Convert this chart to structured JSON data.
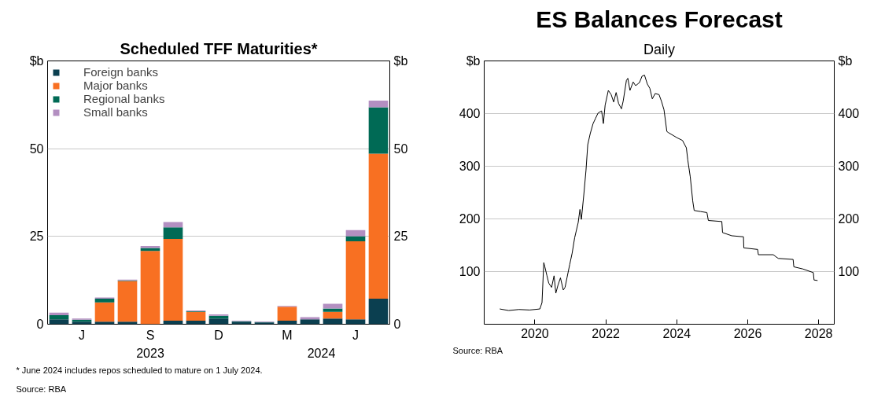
{
  "chart_data": [
    {
      "type": "bar",
      "title": "Scheduled TFF Maturities*",
      "ylabel": "$b",
      "y2label": "$b",
      "stacked": true,
      "categories": [
        null,
        "J",
        null,
        null,
        "S",
        null,
        null,
        "D",
        null,
        null,
        "M",
        null,
        null,
        "J",
        null
      ],
      "series": [
        {
          "name": "Foreign banks",
          "color": "#0b3f50",
          "values": [
            1.4,
            0.7,
            0.7,
            0.7,
            0,
            1.0,
            1.0,
            1.6,
            0.6,
            0.5,
            1.0,
            1.4,
            1.6,
            1.4,
            7.3
          ]
        },
        {
          "name": "Major banks",
          "color": "#f87022",
          "values": [
            0,
            0,
            5.5,
            11.6,
            20.9,
            23.3,
            2.5,
            0,
            0,
            0,
            4.0,
            0,
            1.9,
            22.2,
            41.3
          ]
        },
        {
          "name": "Regional banks",
          "color": "#006a55",
          "values": [
            1.2,
            0.6,
            1.1,
            0.2,
            0.8,
            3.3,
            0.2,
            0.8,
            0.2,
            0.1,
            0,
            0,
            1.0,
            1.5,
            13.2
          ]
        },
        {
          "name": "Small banks",
          "color": "#b38fc1",
          "values": [
            0.7,
            0.3,
            0.3,
            0.2,
            0.6,
            1.5,
            0.2,
            0.4,
            0.2,
            0.2,
            0.2,
            0.6,
            1.3,
            1.7,
            1.9
          ]
        }
      ],
      "ylim": [
        0,
        75
      ],
      "yticks": [
        0,
        25,
        50
      ],
      "y2lim": [
        0,
        75
      ],
      "y2ticks": [
        0,
        25,
        50
      ],
      "grid": "y",
      "legend": "top left",
      "annotations": [
        "2023",
        "2024",
        "*     June 2024 includes repos scheduled to mature on 1 July 2024.",
        "Source:     RBA"
      ]
    },
    {
      "type": "line",
      "title": "ES Balances Forecast",
      "subtitle": "Daily",
      "ylabel": "$b",
      "y2label": "$b",
      "series": [
        {
          "color": "#000000",
          "x": [
            2019.01,
            2019.26,
            2019.55,
            2019.85,
            2020.14,
            2020.2,
            2020.25,
            2020.28,
            2020.34,
            2020.39,
            2020.47,
            2020.54,
            2020.59,
            2020.65,
            2020.72,
            2020.8,
            2020.85,
            2020.91,
            2020.98,
            2021.05,
            2021.12,
            2021.22,
            2021.27,
            2021.31,
            2021.38,
            2021.44,
            2021.49,
            2021.56,
            2021.64,
            2021.71,
            2021.78,
            2021.88,
            2021.93,
            2021.98,
            2022.07,
            2022.15,
            2022.22,
            2022.29,
            2022.36,
            2022.44,
            2022.49,
            2022.58,
            2022.62,
            2022.68,
            2022.77,
            2022.84,
            2022.95,
            2023.02,
            2023.09,
            2023.17,
            2023.24,
            2023.31,
            2023.39,
            2023.5,
            2023.57,
            2023.64,
            2023.72,
            2023.76,
            2024.01,
            2024.16,
            2024.27,
            2024.31,
            2024.38,
            2024.45,
            2024.49,
            2024.67,
            2024.85,
            2024.89,
            2025.27,
            2025.29,
            2025.55,
            2025.88,
            2025.89,
            2026.28,
            2026.3,
            2026.72,
            2026.86,
            2027.28,
            2027.3,
            2027.55,
            2027.85,
            2027.87,
            2027.97
          ],
          "values": [
            29,
            26,
            28,
            27,
            29,
            41,
            117,
            109,
            92,
            78,
            70,
            92,
            59,
            74,
            88,
            65,
            70,
            90,
            113,
            135,
            164,
            193,
            218,
            199,
            247,
            292,
            341,
            362,
            381,
            391,
            401,
            405,
            381,
            416,
            444,
            436,
            422,
            440,
            419,
            409,
            424,
            463,
            467,
            444,
            460,
            453,
            459,
            471,
            473,
            456,
            448,
            428,
            438,
            436,
            423,
            407,
            366,
            364,
            354,
            349,
            335,
            312,
            280,
            234,
            216,
            214,
            212,
            197,
            195,
            174,
            168,
            166,
            145,
            142,
            132,
            132,
            125,
            123,
            109,
            105,
            98,
            84,
            83
          ]
        }
      ],
      "xlim": [
        2018.57,
        2028.44
      ],
      "xticks": [
        2020,
        2022,
        2024,
        2026,
        2028
      ],
      "ylim": [
        0,
        500
      ],
      "yticks": [
        100,
        200,
        300,
        400
      ],
      "y2lim": [
        0,
        500
      ],
      "y2ticks": [
        100,
        200,
        300,
        400
      ],
      "grid": "y",
      "legend": false,
      "annotations": [
        "Source: RBA"
      ]
    }
  ]
}
